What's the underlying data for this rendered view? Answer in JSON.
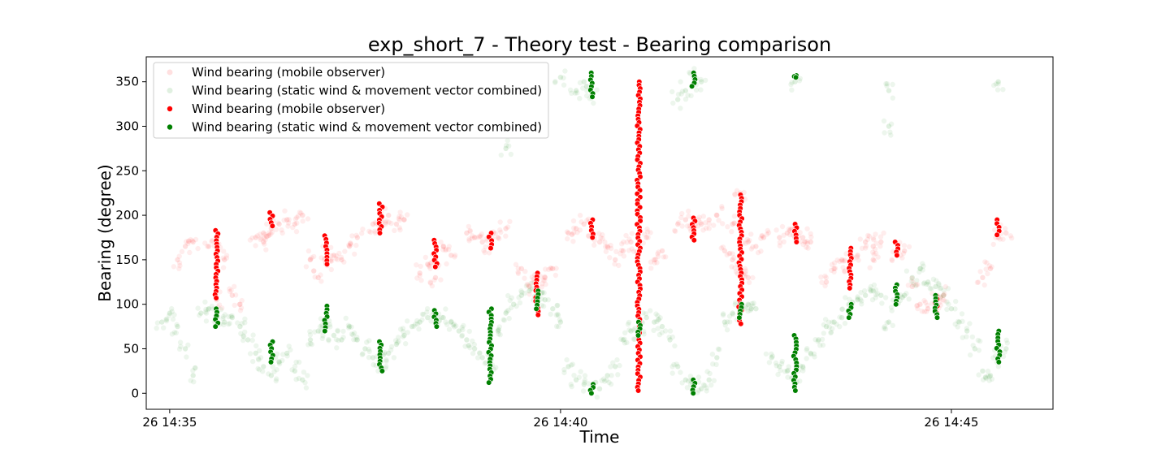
{
  "chart_data": {
    "type": "scatter",
    "title": "exp_short_7 - Theory test - Bearing comparison",
    "xlabel": "Time",
    "ylabel": "Bearing (degree)",
    "x_unit": "time (HH:MM, 26th)",
    "xlim": [
      "14:34.7",
      "14:46.3"
    ],
    "ylim": [
      -18,
      378
    ],
    "x_ticks": [
      {
        "value": "14:35",
        "label": "26 14:35"
      },
      {
        "value": "14:40",
        "label": "26 14:40"
      },
      {
        "value": "14:45",
        "label": "26 14:45"
      }
    ],
    "y_ticks": [
      0,
      50,
      100,
      150,
      200,
      250,
      300,
      350
    ],
    "grid": false,
    "legend": {
      "placement": "top-left",
      "entries": [
        {
          "label": "Wind bearing (mobile observer)",
          "color": "#ff0000",
          "style": "faint"
        },
        {
          "label": "Wind bearing (static wind & movement vector combined)",
          "color": "#008000",
          "style": "faint"
        },
        {
          "label": "Wind bearing (mobile observer)",
          "color": "#ff0000",
          "style": "solid"
        },
        {
          "label": "Wind bearing (static wind & movement vector combined)",
          "color": "#008000",
          "style": "solid"
        }
      ]
    },
    "colors": {
      "mobile": "#ff0000",
      "combined": "#008000"
    },
    "series": [
      {
        "name": "Wind bearing (mobile observer)",
        "style": "faint",
        "color": "#ff0000",
        "points": [
          [
            "14:35.1",
            150
          ],
          [
            "14:35.2",
            165
          ],
          [
            "14:35.3",
            170
          ],
          [
            "14:35.5",
            165
          ],
          [
            "14:35.6",
            160
          ],
          [
            "14:35.7",
            150
          ],
          [
            "14:35.8",
            110
          ],
          [
            "14:35.9",
            100
          ],
          [
            "14:36.1",
            175
          ],
          [
            "14:36.2",
            180
          ],
          [
            "14:36.3",
            185
          ],
          [
            "14:36.4",
            190
          ],
          [
            "14:36.5",
            195
          ],
          [
            "14:36.6",
            190
          ],
          [
            "14:36.7",
            200
          ],
          [
            "14:36.8",
            150
          ],
          [
            "14:36.9",
            130
          ],
          [
            "14:37.0",
            160
          ],
          [
            "14:37.1",
            155
          ],
          [
            "14:37.2",
            150
          ],
          [
            "14:37.3",
            165
          ],
          [
            "14:37.4",
            175
          ],
          [
            "14:37.6",
            190
          ],
          [
            "14:37.7",
            195
          ],
          [
            "14:37.8",
            200
          ],
          [
            "14:37.9",
            190
          ],
          [
            "14:38.0",
            195
          ],
          [
            "14:38.2",
            135
          ],
          [
            "14:38.3",
            145
          ],
          [
            "14:38.4",
            150
          ],
          [
            "14:38.5",
            165
          ],
          [
            "14:38.6",
            155
          ],
          [
            "14:38.8",
            180
          ],
          [
            "14:38.9",
            175
          ],
          [
            "14:39.0",
            170
          ],
          [
            "14:39.1",
            165
          ],
          [
            "14:39.2",
            175
          ],
          [
            "14:39.3",
            185
          ],
          [
            "14:39.5",
            140
          ],
          [
            "14:39.6",
            120
          ],
          [
            "14:39.7",
            125
          ],
          [
            "14:39.8",
            130
          ],
          [
            "14:39.9",
            140
          ],
          [
            "14:40.1",
            180
          ],
          [
            "14:40.2",
            185
          ],
          [
            "14:40.3",
            190
          ],
          [
            "14:40.4",
            175
          ],
          [
            "14:40.5",
            170
          ],
          [
            "14:40.7",
            150
          ],
          [
            "14:40.8",
            160
          ],
          [
            "14:40.9",
            170
          ],
          [
            "14:41.0",
            165
          ],
          [
            "14:41.1",
            175
          ],
          [
            "14:41.3",
            160
          ],
          [
            "14:41.5",
            190
          ],
          [
            "14:41.6",
            195
          ],
          [
            "14:41.7",
            185
          ],
          [
            "14:41.8",
            190
          ],
          [
            "14:41.9",
            195
          ],
          [
            "14:42.0",
            200
          ],
          [
            "14:42.1",
            160
          ],
          [
            "14:42.2",
            150
          ],
          [
            "14:42.3",
            140
          ],
          [
            "14:42.4",
            170
          ],
          [
            "14:42.5",
            165
          ],
          [
            "14:42.6",
            175
          ],
          [
            "14:42.8",
            175
          ],
          [
            "14:42.9",
            180
          ],
          [
            "14:43.0",
            175
          ],
          [
            "14:43.1",
            175
          ],
          [
            "14:43.2",
            170
          ],
          [
            "14:43.4",
            125
          ],
          [
            "14:43.5",
            140
          ],
          [
            "14:43.6",
            150
          ],
          [
            "14:43.7",
            145
          ],
          [
            "14:43.8",
            155
          ],
          [
            "14:43.9",
            170
          ],
          [
            "14:44.0",
            165
          ],
          [
            "14:44.1",
            170
          ],
          [
            "14:44.3",
            155
          ],
          [
            "14:44.4",
            160
          ],
          [
            "14:44.5",
            120
          ],
          [
            "14:44.6",
            100
          ],
          [
            "14:44.7",
            95
          ],
          [
            "14:44.8",
            105
          ],
          [
            "14:44.9",
            110
          ],
          [
            "14:45.4",
            130
          ],
          [
            "14:45.5",
            140
          ],
          [
            "14:45.6",
            175
          ],
          [
            "14:45.7",
            180
          ],
          [
            "14:35.6",
            105
          ],
          [
            "14:36.2",
            170
          ],
          [
            "14:37.0",
            145
          ],
          [
            "14:38.4",
            130
          ],
          [
            "14:39.7",
            115
          ],
          [
            "14:41.2",
            150
          ],
          [
            "14:42.2",
            190
          ],
          [
            "14:42.3",
            225
          ],
          [
            "14:43.0",
            185
          ],
          [
            "14:44.0",
            150
          ],
          [
            "14:40.6",
            165
          ],
          [
            "14:42.4",
            130
          ]
        ]
      },
      {
        "name": "Wind bearing (static wind & movement vector combined)",
        "style": "faint",
        "color": "#008000",
        "points": [
          [
            "14:34.9",
            80
          ],
          [
            "14:35.0",
            90
          ],
          [
            "14:35.1",
            75
          ],
          [
            "14:35.2",
            50
          ],
          [
            "14:35.3",
            20
          ],
          [
            "14:35.4",
            90
          ],
          [
            "14:35.5",
            95
          ],
          [
            "14:35.6",
            85
          ],
          [
            "14:35.7",
            80
          ],
          [
            "14:35.8",
            85
          ],
          [
            "14:35.9",
            75
          ],
          [
            "14:36.0",
            60
          ],
          [
            "14:36.1",
            45
          ],
          [
            "14:36.2",
            30
          ],
          [
            "14:36.3",
            20
          ],
          [
            "14:36.4",
            35
          ],
          [
            "14:36.5",
            45
          ],
          [
            "14:36.6",
            25
          ],
          [
            "14:36.7",
            15
          ],
          [
            "14:36.8",
            60
          ],
          [
            "14:36.9",
            70
          ],
          [
            "14:37.0",
            75
          ],
          [
            "14:37.1",
            65
          ],
          [
            "14:37.2",
            60
          ],
          [
            "14:37.3",
            75
          ],
          [
            "14:37.4",
            60
          ],
          [
            "14:37.5",
            50
          ],
          [
            "14:37.6",
            40
          ],
          [
            "14:37.7",
            35
          ],
          [
            "14:37.8",
            45
          ],
          [
            "14:37.9",
            55
          ],
          [
            "14:38.0",
            65
          ],
          [
            "14:38.1",
            75
          ],
          [
            "14:38.2",
            80
          ],
          [
            "14:38.3",
            85
          ],
          [
            "14:38.4",
            80
          ],
          [
            "14:38.5",
            85
          ],
          [
            "14:38.6",
            80
          ],
          [
            "14:38.7",
            70
          ],
          [
            "14:38.8",
            60
          ],
          [
            "14:38.9",
            50
          ],
          [
            "14:39.0",
            40
          ],
          [
            "14:39.1",
            35
          ],
          [
            "14:39.2",
            70
          ],
          [
            "14:39.3",
            90
          ],
          [
            "14:39.4",
            100
          ],
          [
            "14:39.5",
            110
          ],
          [
            "14:39.6",
            115
          ],
          [
            "14:39.7",
            110
          ],
          [
            "14:39.8",
            105
          ],
          [
            "14:39.9",
            95
          ],
          [
            "14:40.0",
            80
          ],
          [
            "14:40.1",
            30
          ],
          [
            "14:40.2",
            15
          ],
          [
            "14:40.3",
            10
          ],
          [
            "14:40.5",
            5
          ],
          [
            "14:40.6",
            20
          ],
          [
            "14:40.7",
            30
          ],
          [
            "14:40.8",
            60
          ],
          [
            "14:40.9",
            70
          ],
          [
            "14:41.0",
            75
          ],
          [
            "14:41.1",
            85
          ],
          [
            "14:41.2",
            80
          ],
          [
            "14:41.3",
            75
          ],
          [
            "14:41.4",
            60
          ],
          [
            "14:41.5",
            30
          ],
          [
            "14:41.6",
            15
          ],
          [
            "14:41.7",
            10
          ],
          [
            "14:41.8",
            5
          ],
          [
            "14:41.9",
            15
          ],
          [
            "14:42.0",
            40
          ],
          [
            "14:42.1",
            80
          ],
          [
            "14:42.2",
            90
          ],
          [
            "14:42.3",
            95
          ],
          [
            "14:42.4",
            100
          ],
          [
            "14:42.5",
            95
          ],
          [
            "14:42.7",
            40
          ],
          [
            "14:42.8",
            30
          ],
          [
            "14:42.9",
            25
          ],
          [
            "14:43.0",
            20
          ],
          [
            "14:43.1",
            30
          ],
          [
            "14:43.2",
            45
          ],
          [
            "14:43.3",
            60
          ],
          [
            "14:43.4",
            75
          ],
          [
            "14:43.5",
            80
          ],
          [
            "14:43.6",
            85
          ],
          [
            "14:43.7",
            100
          ],
          [
            "14:43.8",
            105
          ],
          [
            "14:43.9",
            110
          ],
          [
            "14:44.0",
            115
          ],
          [
            "14:44.1",
            110
          ],
          [
            "14:44.2",
            80
          ],
          [
            "14:44.3",
            100
          ],
          [
            "14:44.4",
            110
          ],
          [
            "14:44.5",
            130
          ],
          [
            "14:44.6",
            140
          ],
          [
            "14:44.7",
            125
          ],
          [
            "14:44.8",
            120
          ],
          [
            "14:44.9",
            110
          ],
          [
            "14:45.0",
            95
          ],
          [
            "14:45.1",
            80
          ],
          [
            "14:45.2",
            70
          ],
          [
            "14:45.3",
            50
          ],
          [
            "14:45.4",
            25
          ],
          [
            "14:45.5",
            20
          ],
          [
            "14:45.6",
            40
          ],
          [
            "14:45.7",
            50
          ],
          [
            "14:40.2",
            340
          ],
          [
            "14:40.3",
            350
          ],
          [
            "14:40.4",
            335
          ],
          [
            "14:41.6",
            340
          ],
          [
            "14:41.7",
            355
          ],
          [
            "14:41.8",
            350
          ],
          [
            "14:41.5",
            330
          ],
          [
            "14:44.2",
            340
          ],
          [
            "14:44.2",
            300
          ],
          [
            "14:45.6",
            350
          ],
          [
            "14:39.3",
            275
          ],
          [
            "14:40.0",
            355
          ],
          [
            "14:43.0",
            350
          ]
        ]
      },
      {
        "name": "Wind bearing (mobile observer)",
        "style": "solid",
        "color": "#ff0000",
        "clusters": [
          {
            "x": "14:35.6",
            "ymin": 107,
            "ymax": 183
          },
          {
            "x": "14:36.3",
            "ymin": 188,
            "ymax": 203
          },
          {
            "x": "14:37.0",
            "ymin": 145,
            "ymax": 177
          },
          {
            "x": "14:37.7",
            "ymin": 180,
            "ymax": 213
          },
          {
            "x": "14:38.4",
            "ymin": 142,
            "ymax": 172
          },
          {
            "x": "14:39.1",
            "ymin": 163,
            "ymax": 180
          },
          {
            "x": "14:39.7",
            "ymin": 88,
            "ymax": 135
          },
          {
            "x": "14:40.4",
            "ymin": 175,
            "ymax": 195
          },
          {
            "x": "14:41.0",
            "ymin": 3,
            "ymax": 350
          },
          {
            "x": "14:41.7",
            "ymin": 172,
            "ymax": 197
          },
          {
            "x": "14:42.3",
            "ymin": 78,
            "ymax": 223
          },
          {
            "x": "14:43.0",
            "ymin": 170,
            "ymax": 190
          },
          {
            "x": "14:43.7",
            "ymin": 118,
            "ymax": 163
          },
          {
            "x": "14:44.3",
            "ymin": 155,
            "ymax": 170
          },
          {
            "x": "14:44.8",
            "ymin": 90,
            "ymax": 110
          },
          {
            "x": "14:45.6",
            "ymin": 178,
            "ymax": 195
          }
        ]
      },
      {
        "name": "Wind bearing (static wind & movement vector combined)",
        "style": "solid",
        "color": "#008000",
        "clusters": [
          {
            "x": "14:35.6",
            "ymin": 75,
            "ymax": 95
          },
          {
            "x": "14:36.3",
            "ymin": 35,
            "ymax": 58
          },
          {
            "x": "14:37.0",
            "ymin": 70,
            "ymax": 98
          },
          {
            "x": "14:37.7",
            "ymin": 25,
            "ymax": 58
          },
          {
            "x": "14:38.4",
            "ymin": 75,
            "ymax": 93
          },
          {
            "x": "14:39.1",
            "ymin": 12,
            "ymax": 95
          },
          {
            "x": "14:39.7",
            "ymin": 95,
            "ymax": 115
          },
          {
            "x": "14:40.4",
            "ymin": 0,
            "ymax": 10
          },
          {
            "x": "14:40.4",
            "ymin": 333,
            "ymax": 360
          },
          {
            "x": "14:41.0",
            "ymin": 65,
            "ymax": 80
          },
          {
            "x": "14:41.7",
            "ymin": 0,
            "ymax": 15
          },
          {
            "x": "14:41.7",
            "ymin": 345,
            "ymax": 360
          },
          {
            "x": "14:42.3",
            "ymin": 85,
            "ymax": 100
          },
          {
            "x": "14:43.0",
            "ymin": 3,
            "ymax": 65
          },
          {
            "x": "14:43.0",
            "ymin": 355,
            "ymax": 357
          },
          {
            "x": "14:43.7",
            "ymin": 85,
            "ymax": 100
          },
          {
            "x": "14:44.3",
            "ymin": 100,
            "ymax": 122
          },
          {
            "x": "14:44.8",
            "ymin": 85,
            "ymax": 110
          },
          {
            "x": "14:45.6",
            "ymin": 35,
            "ymax": 70
          }
        ]
      }
    ]
  }
}
